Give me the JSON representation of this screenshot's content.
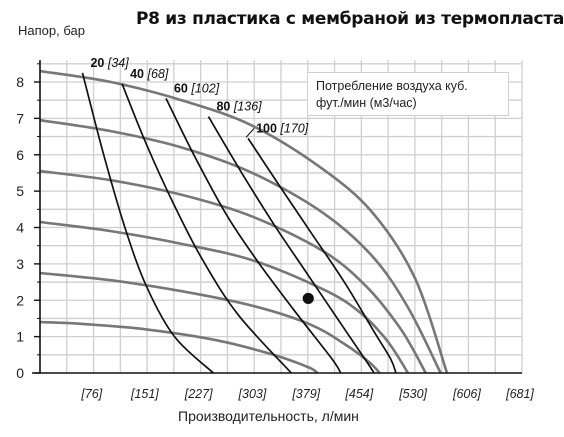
{
  "title": "P8 из пластика с мембраной из термопласта",
  "chart_data": {
    "type": "line",
    "title": "P8 из пластика с мембраной из термопласта",
    "ylabel": "Напор, бар",
    "xlabel": "Производительность, л/мин",
    "xlim": [
      0,
      681
    ],
    "ylim": [
      0,
      8.6
    ],
    "x_ticks": [
      76,
      151,
      227,
      303,
      379,
      454,
      530,
      606,
      681
    ],
    "x_tick_labels": [
      "[76]",
      "[151]",
      "[227]",
      "[303]",
      "[379]",
      "[454]",
      "[530]",
      "[606]",
      "[681]"
    ],
    "y_ticks": [
      0,
      1,
      2,
      3,
      4,
      5,
      6,
      7,
      8
    ],
    "y_tick_labels": [
      "0",
      "1",
      "2",
      "3",
      "4",
      "5",
      "6",
      "7",
      "8"
    ],
    "grid": true,
    "legend": {
      "position": "top-right",
      "lines": [
        "Потребление воздуха куб.",
        "фут./мин (м3/час)"
      ]
    },
    "pressure_series": [
      {
        "points": [
          [
            0,
            8.3
          ],
          [
            100,
            8.0
          ],
          [
            200,
            7.5
          ],
          [
            300,
            6.8
          ],
          [
            400,
            5.6
          ],
          [
            470,
            4.4
          ],
          [
            530,
            2.6
          ],
          [
            575,
            0.0
          ]
        ]
      },
      {
        "points": [
          [
            0,
            6.95
          ],
          [
            100,
            6.65
          ],
          [
            200,
            6.2
          ],
          [
            300,
            5.5
          ],
          [
            400,
            4.4
          ],
          [
            470,
            3.2
          ],
          [
            520,
            1.8
          ],
          [
            566,
            0.0
          ]
        ]
      },
      {
        "points": [
          [
            0,
            5.55
          ],
          [
            100,
            5.3
          ],
          [
            200,
            4.9
          ],
          [
            300,
            4.3
          ],
          [
            400,
            3.35
          ],
          [
            460,
            2.4
          ],
          [
            510,
            1.2
          ],
          [
            545,
            0.0
          ]
        ]
      },
      {
        "points": [
          [
            0,
            4.15
          ],
          [
            100,
            3.9
          ],
          [
            200,
            3.55
          ],
          [
            300,
            3.1
          ],
          [
            400,
            2.3
          ],
          [
            450,
            1.7
          ],
          [
            490,
            0.9
          ],
          [
            520,
            0.0
          ]
        ]
      },
      {
        "points": [
          [
            0,
            2.75
          ],
          [
            100,
            2.55
          ],
          [
            200,
            2.25
          ],
          [
            300,
            1.85
          ],
          [
            380,
            1.35
          ],
          [
            430,
            0.8
          ],
          [
            465,
            0.3
          ],
          [
            480,
            0.0
          ]
        ]
      },
      {
        "points": [
          [
            0,
            1.4
          ],
          [
            60,
            1.35
          ],
          [
            150,
            1.2
          ],
          [
            250,
            0.9
          ],
          [
            330,
            0.5
          ],
          [
            380,
            0.15
          ],
          [
            392,
            0.0
          ]
        ]
      }
    ],
    "air_series": [
      {
        "label": "20",
        "label_sub": "[34]",
        "points": [
          [
            60,
            8.25
          ],
          [
            90,
            6.0
          ],
          [
            120,
            4.0
          ],
          [
            150,
            2.4
          ],
          [
            190,
            1.0
          ],
          [
            245,
            0.0
          ]
        ]
      },
      {
        "label": "40",
        "label_sub": "[68]",
        "points": [
          [
            116,
            7.95
          ],
          [
            150,
            6.3
          ],
          [
            190,
            4.6
          ],
          [
            230,
            3.1
          ],
          [
            280,
            1.6
          ],
          [
            355,
            0.0
          ]
        ]
      },
      {
        "label": "60",
        "label_sub": "[102]",
        "points": [
          [
            178,
            7.55
          ],
          [
            220,
            5.9
          ],
          [
            265,
            4.3
          ],
          [
            310,
            3.0
          ],
          [
            360,
            1.7
          ],
          [
            412,
            0.4
          ],
          [
            425,
            0.0
          ]
        ]
      },
      {
        "label": "80",
        "label_sub": "[136]",
        "points": [
          [
            238,
            7.05
          ],
          [
            285,
            5.5
          ],
          [
            330,
            4.1
          ],
          [
            375,
            2.8
          ],
          [
            420,
            1.5
          ],
          [
            462,
            0.3
          ],
          [
            472,
            0.0
          ]
        ]
      },
      {
        "label": "100",
        "label_sub": "[170]",
        "points": [
          [
            294,
            6.45
          ],
          [
            340,
            5.1
          ],
          [
            385,
            3.8
          ],
          [
            430,
            2.5
          ],
          [
            470,
            1.2
          ],
          [
            495,
            0.4
          ],
          [
            503,
            0.0
          ]
        ]
      }
    ],
    "marker": {
      "x": 379,
      "y": 2.05
    }
  },
  "colors": {
    "grid": "#cfcfcf",
    "pressure_curve": "#777777",
    "air_curve": "#111111",
    "axis": "#111111",
    "text": "#222222"
  }
}
